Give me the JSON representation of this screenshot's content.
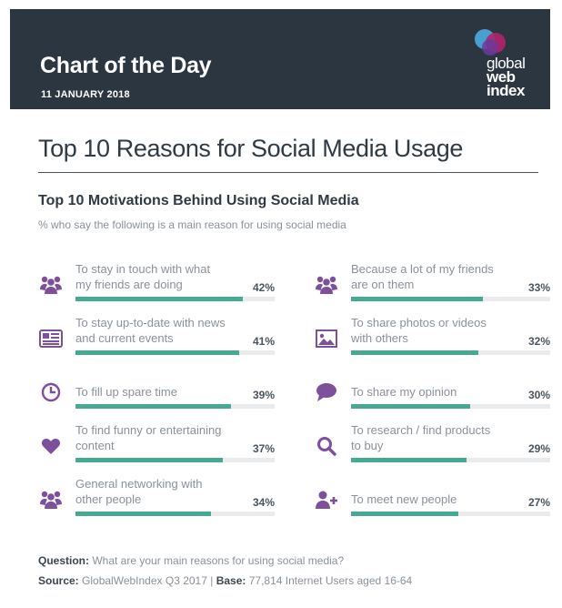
{
  "header": {
    "title": "Chart of the Day",
    "date": "11 JANUARY 2018",
    "logo": {
      "line1": "global",
      "line2": "web",
      "line3": "index"
    }
  },
  "colors": {
    "header_bg": "#2c3640",
    "icon_purple": "#7e4f9c",
    "bar_fill": "#46a994",
    "bar_track": "#e9ebed"
  },
  "main_title": "Top 10 Reasons for Social Media Usage",
  "chart_data": {
    "type": "bar",
    "title": "Top 10 Motivations Behind Using Social Media",
    "subtitle": "% who say the following is a main reason for using social media",
    "unit": "%",
    "categories": [
      "To stay in touch with what my friends are doing",
      "To stay up-to-date with news and current events",
      "To fill up spare time",
      "To find funny or entertaining content",
      "General networking with other people",
      "Because a lot of my friends are on them",
      "To share photos or videos with others",
      "To share my opinion",
      "To research / find products to buy",
      "To meet new people"
    ],
    "values": [
      42,
      41,
      39,
      37,
      34,
      33,
      32,
      30,
      29,
      27
    ],
    "ylim": [
      0,
      50
    ],
    "items": [
      {
        "label": "To stay in touch with what my friends are doing",
        "value": 42,
        "display": "42%",
        "icon": "group-icon"
      },
      {
        "label": "To stay up-to-date with news and current events",
        "value": 41,
        "display": "41%",
        "icon": "newspaper-icon"
      },
      {
        "label": "To fill up spare time",
        "value": 39,
        "display": "39%",
        "icon": "clock-icon"
      },
      {
        "label": "To find funny or entertaining content",
        "value": 37,
        "display": "37%",
        "icon": "heart-icon"
      },
      {
        "label": "General networking with other people",
        "value": 34,
        "display": "34%",
        "icon": "group-icon"
      },
      {
        "label": "Because a lot of my friends are on them",
        "value": 33,
        "display": "33%",
        "icon": "group-icon"
      },
      {
        "label": "To share photos or videos with others",
        "value": 32,
        "display": "32%",
        "icon": "image-icon"
      },
      {
        "label": "To share my opinion",
        "value": 30,
        "display": "30%",
        "icon": "speech-bubble-icon"
      },
      {
        "label": "To research / find products to buy",
        "value": 29,
        "display": "29%",
        "icon": "search-icon"
      },
      {
        "label": "To meet new people",
        "value": 27,
        "display": "27%",
        "icon": "add-person-icon"
      }
    ]
  },
  "footer": {
    "question_label": "Question:",
    "question_text": "What are your main reasons for using social media?",
    "source_label": "Source:",
    "source_text": "GlobalWebIndex Q3 2017",
    "separator": "|",
    "base_label": "Base:",
    "base_text": "77,814 Internet Users aged 16-64"
  }
}
